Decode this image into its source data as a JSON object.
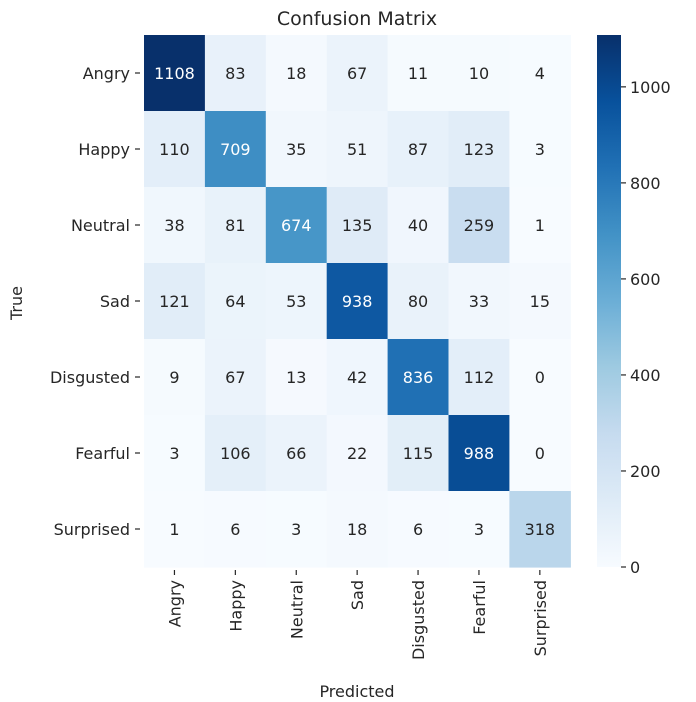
{
  "chart_data": {
    "type": "heatmap",
    "title": "Confusion Matrix",
    "xlabel": "Predicted",
    "ylabel": "True",
    "row_labels": [
      "Angry",
      "Happy",
      "Neutral",
      "Sad",
      "Disgusted",
      "Fearful",
      "Surprised"
    ],
    "col_labels": [
      "Angry",
      "Happy",
      "Neutral",
      "Sad",
      "Disgusted",
      "Fearful",
      "Surprised"
    ],
    "values": [
      [
        1108,
        83,
        18,
        67,
        11,
        10,
        4
      ],
      [
        110,
        709,
        35,
        51,
        87,
        123,
        3
      ],
      [
        38,
        81,
        674,
        135,
        40,
        259,
        1
      ],
      [
        121,
        64,
        53,
        938,
        80,
        33,
        15
      ],
      [
        9,
        67,
        13,
        42,
        836,
        112,
        0
      ],
      [
        3,
        106,
        66,
        22,
        115,
        988,
        0
      ],
      [
        1,
        6,
        3,
        18,
        6,
        3,
        318
      ]
    ],
    "colorbar": {
      "min": 0,
      "max": 1108,
      "ticks": [
        0,
        200,
        400,
        600,
        800,
        1000
      ]
    },
    "colormap": "Blues",
    "colors": {
      "low": "#f7fbff",
      "high": "#08306b",
      "text_dark": "#262626",
      "text_light": "#ffffff"
    }
  }
}
